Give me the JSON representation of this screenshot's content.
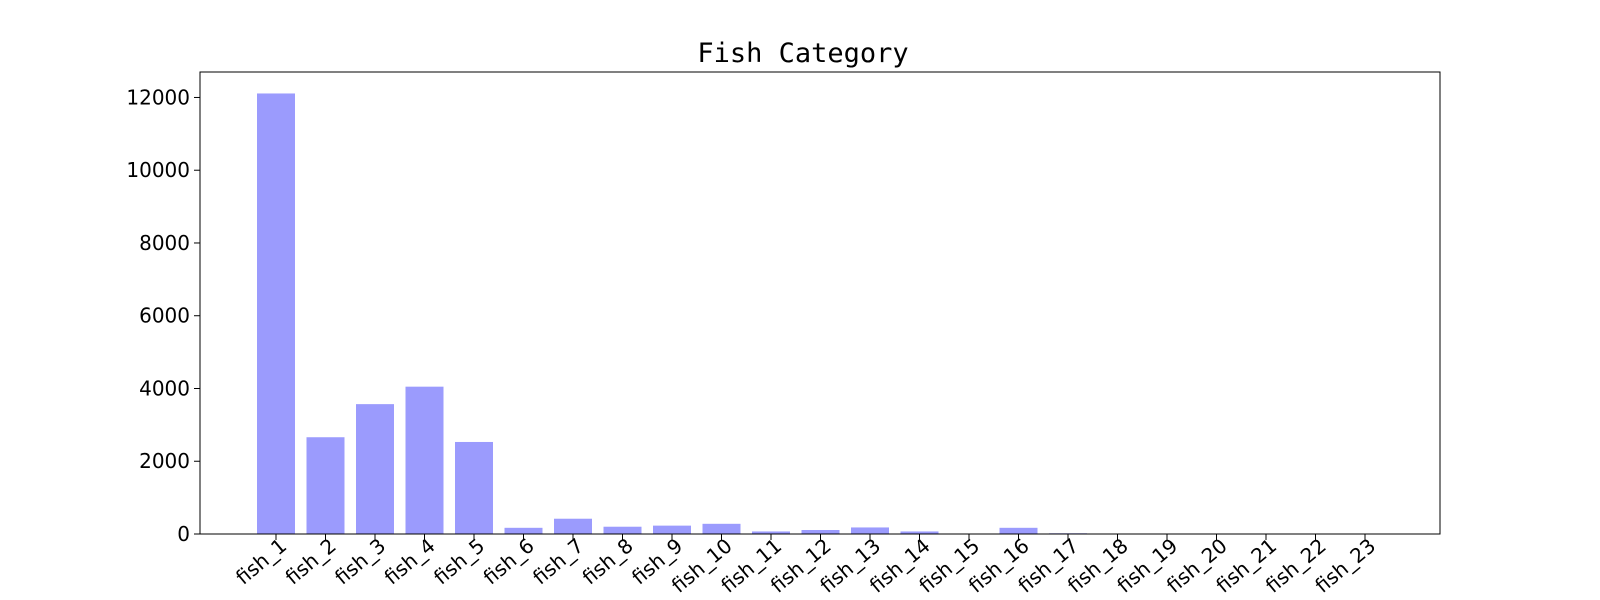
{
  "chart_data": {
    "type": "bar",
    "title": "Fish Category",
    "xlabel": "",
    "ylabel": "",
    "categories": [
      "fish_1",
      "fish_2",
      "fish_3",
      "fish_4",
      "fish_5",
      "fish_6",
      "fish_7",
      "fish_8",
      "fish_9",
      "fish_10",
      "fish_11",
      "fish_12",
      "fish_13",
      "fish_14",
      "fish_15",
      "fish_16",
      "fish_17",
      "fish_18",
      "fish_19",
      "fish_20",
      "fish_21",
      "fish_22",
      "fish_23"
    ],
    "values": [
      12110,
      2660,
      3570,
      4050,
      2530,
      170,
      420,
      200,
      230,
      280,
      70,
      110,
      180,
      70,
      10,
      170,
      20,
      10,
      5,
      5,
      5,
      5,
      5
    ],
    "ylim": [
      0,
      12700
    ],
    "yticks": [
      0,
      2000,
      4000,
      6000,
      8000,
      10000,
      12000
    ],
    "grid": false,
    "bar_color": "#9b9bfd"
  }
}
